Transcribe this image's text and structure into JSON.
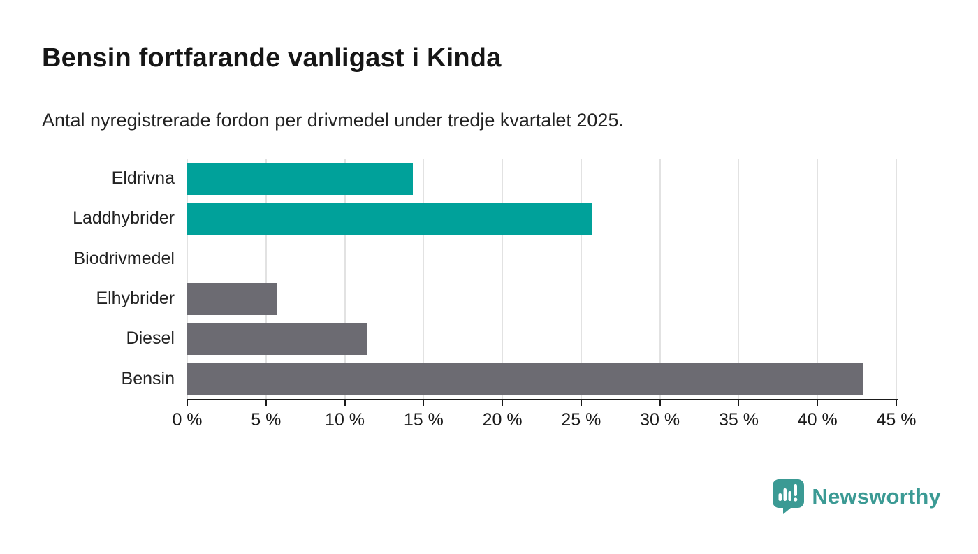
{
  "header": {
    "title": "Bensin fortfarande vanligast i Kinda",
    "subtitle": "Antal nyregistrerade fordon per drivmedel under tredje kvartalet 2025."
  },
  "chart_data": {
    "type": "bar",
    "orientation": "horizontal",
    "title": "Bensin fortfarande vanligast i Kinda",
    "subtitle": "Antal nyregistrerade fordon per drivmedel under tredje kvartalet 2025.",
    "categories": [
      "Eldrivna",
      "Laddhybrider",
      "Biodrivmedel",
      "Elhybrider",
      "Diesel",
      "Bensin"
    ],
    "values": [
      14.3,
      25.7,
      0,
      5.7,
      11.4,
      42.9
    ],
    "value_unit": "%",
    "xlabel": "",
    "ylabel": "",
    "xlim": [
      0,
      45
    ],
    "x_tick_step": 5,
    "x_tick_labels": [
      "0 %",
      "5 %",
      "10 %",
      "15 %",
      "20 %",
      "25 %",
      "30 %",
      "35 %",
      "40 %",
      "45 %"
    ],
    "grid": "vertical-only",
    "legend": "none",
    "bar_colors": [
      "#00a19a",
      "#00a19a",
      "#6c6b72",
      "#6c6b72",
      "#6c6b72",
      "#6c6b72"
    ]
  },
  "colors": {
    "accent_teal": "#00a19a",
    "neutral_gray": "#6c6b72",
    "gridline": "#e2e2e2",
    "axis": "#1a1a1a",
    "text": "#1a1a1a",
    "logo_teal": "#3b9a94"
  },
  "branding": {
    "logo_text": "Newsworthy",
    "logo_icon": "newsworthy-pin-barchart-icon"
  }
}
